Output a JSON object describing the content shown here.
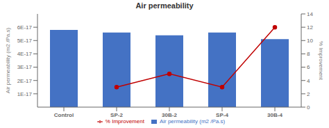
{
  "chart_data": {
    "type": "bar",
    "title": "Air permeability",
    "categories": [
      "Control",
      "SP-2",
      "30B-2",
      "SP-4",
      "30B-4"
    ],
    "series": [
      {
        "name": "Air permeability (m2 /Pa.s)",
        "type": "bar",
        "color": "#4472C4",
        "values": [
          5.8e-17,
          5.6e-17,
          5.4e-17,
          5.6e-17,
          5.1e-17
        ]
      },
      {
        "name": "% Improvement",
        "type": "line",
        "color": "#C00000",
        "marker": "circle",
        "axis": "y2",
        "values": [
          null,
          3.0,
          5.0,
          3.0,
          12.0
        ]
      }
    ],
    "ylabel": "Air permeability (m2 /Pa.s)",
    "y2label": "% Improvement",
    "ylim": [
      0,
      7e-17
    ],
    "yticks": [
      {
        "value": 1e-17,
        "label": "1E-17"
      },
      {
        "value": 2e-17,
        "label": "2E-17"
      },
      {
        "value": 3e-17,
        "label": "3E-17"
      },
      {
        "value": 4e-17,
        "label": "4E-17"
      },
      {
        "value": 5e-17,
        "label": "5E-17"
      },
      {
        "value": 6e-17,
        "label": "6E-17"
      }
    ],
    "y2lim": [
      0,
      14
    ],
    "y2ticks": [
      0,
      2,
      4,
      6,
      8,
      10,
      12,
      14
    ],
    "grid": false,
    "legend": "bottom"
  }
}
